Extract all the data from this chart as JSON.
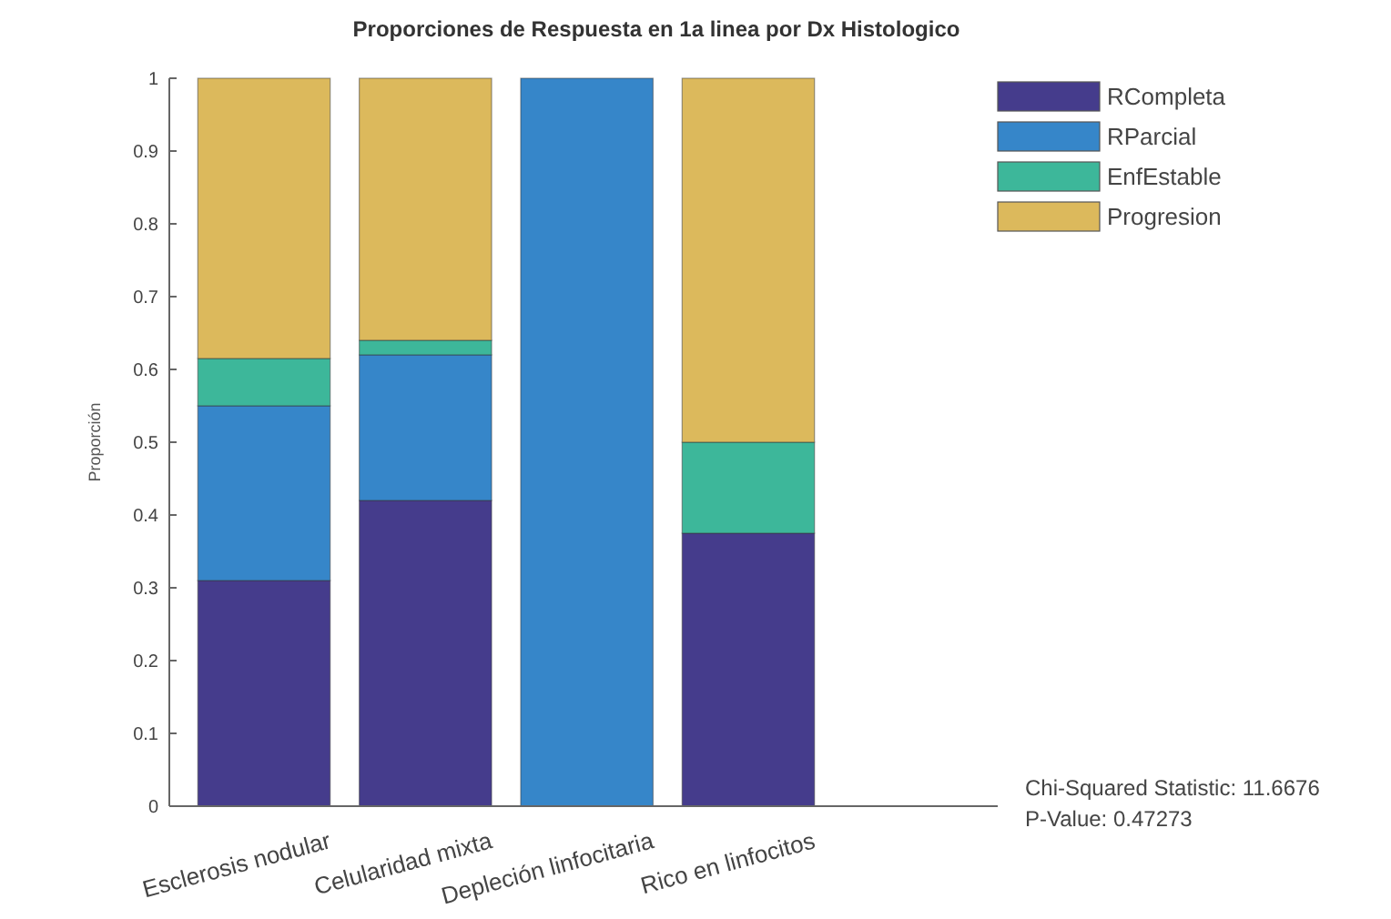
{
  "chart_data": {
    "type": "bar",
    "title": "Proporciones de Respuesta en 1a linea por Dx Histologico",
    "ylabel": "Proporción",
    "categories": [
      "Esclerosis nodular",
      "Celularidad mixta",
      "Depleción linfocitaria",
      "Rico en linfocitos"
    ],
    "stacked": true,
    "series": [
      {
        "name": "RCompleta",
        "color": "#453c8c",
        "values": [
          0.31,
          0.42,
          0,
          0.375
        ]
      },
      {
        "name": "RParcial",
        "color": "#3686c9",
        "values": [
          0.24,
          0.2,
          1,
          0
        ]
      },
      {
        "name": "EnfEstable",
        "color": "#3db79a",
        "values": [
          0.065,
          0.02,
          0,
          0.125
        ]
      },
      {
        "name": "Progresion",
        "color": "#dcb95c",
        "values": [
          0.385,
          0.36,
          0,
          0.5
        ]
      }
    ],
    "ylim": [
      0,
      1
    ],
    "yticks": [
      0,
      0.1,
      0.2,
      0.3,
      0.4,
      0.5,
      0.6,
      0.7,
      0.8,
      0.9,
      1
    ],
    "grid": false,
    "legend": "top right",
    "annotations": [
      "Chi-Squared Statistic: 11.6676",
      "P-Value: 0.47273"
    ]
  }
}
